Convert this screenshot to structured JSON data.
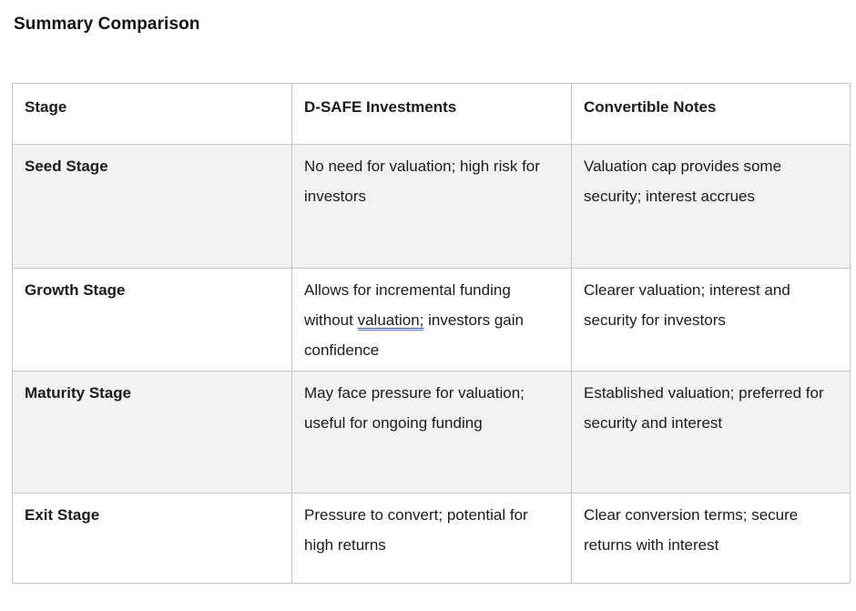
{
  "page": {
    "title": "Summary Comparison"
  },
  "table": {
    "headers": [
      "Stage",
      "D-SAFE Investments",
      "Convertible Notes"
    ],
    "rows": [
      {
        "stage": "Seed Stage",
        "dsafe": "No need for valuation; high risk for investors",
        "notes": "Valuation cap provides some security; interest accrues"
      },
      {
        "stage": "Growth Stage",
        "dsafe_segments": [
          "Allows for incremental funding without ",
          "valuation;",
          " investors gain confidence"
        ],
        "notes": "Clearer valuation; interest and security for investors"
      },
      {
        "stage": "Maturity Stage",
        "dsafe": "May face pressure for valuation; useful for ongoing funding",
        "notes": "Established valuation; preferred for security and interest"
      },
      {
        "stage": "Exit Stage",
        "dsafe": "Pressure to convert; potential for high returns",
        "notes": "Clear conversion terms; secure returns with interest"
      }
    ],
    "colors": {
      "alt_row_bg": "#f2f2f2",
      "border": "#c6c6c6",
      "text": "#1b1b1b",
      "grammar_underline_top": "#39549c",
      "grammar_underline_bottom": "#4a77d4"
    }
  }
}
